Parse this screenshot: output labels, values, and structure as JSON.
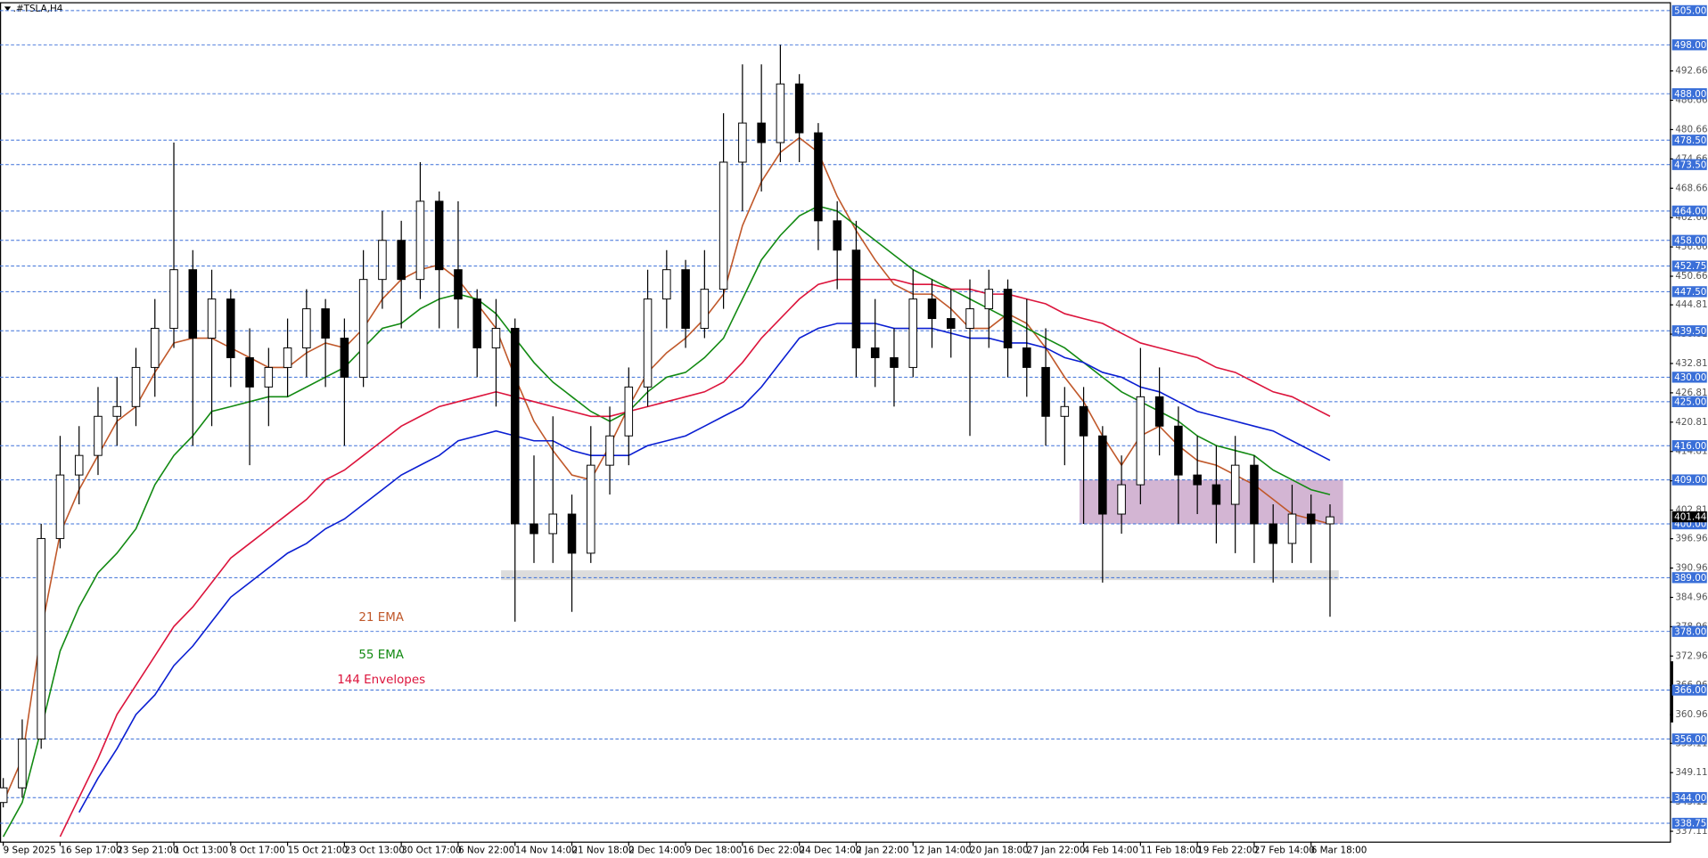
{
  "chart_data": {
    "type": "candlestick",
    "title": ".#TSLA,H4",
    "categories": [
      "9 Sep 2025",
      null,
      null,
      "16 Sep 17:00",
      null,
      null,
      "23 Sep 21:00",
      null,
      null,
      "1 Oct 13:00",
      null,
      null,
      "8 Oct 17:00",
      null,
      null,
      "15 Oct 21:00",
      null,
      null,
      "23 Oct 13:00",
      null,
      null,
      "30 Oct 17:00",
      null,
      null,
      "6 Nov 22:00",
      null,
      null,
      "14 Nov 14:00",
      null,
      null,
      "21 Nov 18:00",
      null,
      null,
      "2 Dec 14:00",
      null,
      null,
      "9 Dec 18:00",
      null,
      null,
      "16 Dec 22:00",
      null,
      null,
      "24 Dec 14:00",
      null,
      null,
      "2 Jan 22:00",
      null,
      null,
      "12 Jan 14:00",
      null,
      null,
      "20 Jan 18:00",
      null,
      null,
      "27 Jan 22:00",
      null,
      null,
      "4 Feb 14:00",
      null,
      null,
      "11 Feb 18:00",
      null,
      null,
      "19 Feb 22:00",
      null,
      null,
      "27 Feb 14:00",
      null,
      null,
      "6 Mar 18:00",
      null
    ],
    "candles": {
      "open": [
        343,
        346,
        356,
        397,
        410,
        414,
        422,
        424,
        432,
        440,
        452,
        438,
        446,
        434,
        428,
        432,
        436,
        444,
        438,
        430,
        450,
        458,
        450,
        466,
        452,
        446,
        436,
        440,
        400,
        398,
        402,
        394,
        412,
        418,
        428,
        446,
        452,
        440,
        448,
        474,
        482,
        478,
        490,
        480,
        462,
        456,
        436,
        434,
        432,
        446,
        442,
        440,
        444,
        448,
        436,
        432,
        422,
        424,
        418,
        402,
        408,
        426,
        420,
        410,
        408,
        404,
        412,
        400,
        396,
        402,
        400
      ],
      "high": [
        348,
        360,
        400,
        418,
        420,
        428,
        430,
        436,
        446,
        478,
        456,
        452,
        448,
        440,
        436,
        442,
        448,
        446,
        442,
        456,
        464,
        462,
        474,
        468,
        466,
        448,
        446,
        442,
        414,
        422,
        406,
        420,
        424,
        432,
        452,
        456,
        454,
        456,
        484,
        494,
        494,
        498,
        492,
        482,
        466,
        462,
        446,
        440,
        452,
        450,
        448,
        450,
        452,
        450,
        446,
        440,
        428,
        428,
        420,
        414,
        436,
        432,
        424,
        418,
        416,
        418,
        414,
        404,
        408,
        406,
        404
      ],
      "low": [
        342,
        344,
        354,
        395,
        404,
        410,
        416,
        420,
        426,
        436,
        416,
        420,
        428,
        412,
        420,
        426,
        430,
        428,
        416,
        428,
        444,
        440,
        446,
        440,
        440,
        430,
        424,
        380,
        392,
        392,
        382,
        392,
        406,
        412,
        424,
        440,
        436,
        438,
        444,
        464,
        468,
        474,
        474,
        456,
        448,
        430,
        428,
        424,
        430,
        436,
        434,
        418,
        436,
        430,
        426,
        416,
        412,
        400,
        388,
        398,
        404,
        414,
        400,
        402,
        396,
        394,
        392,
        388,
        392,
        392,
        381
      ],
      "close": [
        346,
        356,
        397,
        410,
        414,
        422,
        424,
        432,
        440,
        452,
        438,
        446,
        434,
        428,
        432,
        436,
        444,
        438,
        430,
        450,
        458,
        450,
        466,
        452,
        446,
        436,
        440,
        400,
        398,
        402,
        394,
        412,
        418,
        428,
        446,
        452,
        440,
        448,
        474,
        482,
        478,
        490,
        480,
        462,
        456,
        436,
        434,
        432,
        446,
        442,
        440,
        444,
        448,
        436,
        432,
        422,
        424,
        418,
        402,
        408,
        426,
        420,
        410,
        408,
        404,
        412,
        400,
        396,
        402,
        400,
        401.44
      ]
    },
    "bull_color": "#ffffff",
    "bear_color": "#000000",
    "series": [
      {
        "name": "21 EMA",
        "color": "#c0582a",
        "values": [
          343,
          352,
          378,
          398,
          407,
          414,
          421,
          424,
          431,
          437,
          438,
          438,
          436,
          434,
          432,
          432,
          435,
          437,
          436,
          440,
          446,
          450,
          452,
          453,
          450,
          445,
          440,
          430,
          421,
          415,
          410,
          409,
          416,
          424,
          431,
          435,
          438,
          442,
          447,
          461,
          470,
          476,
          479,
          476,
          467,
          460,
          454,
          449,
          447,
          447,
          444,
          440,
          440,
          443,
          441,
          436,
          430,
          425,
          418,
          412,
          418,
          420,
          416,
          413,
          412,
          410,
          408,
          405,
          402,
          401,
          400
        ]
      },
      {
        "name": "55 EMA",
        "color": "#138a13",
        "values": [
          336,
          343,
          358,
          374,
          383,
          390,
          394,
          399,
          408,
          414,
          418,
          423,
          424,
          425,
          426,
          426,
          428,
          430,
          432,
          436,
          440,
          441,
          444,
          446,
          447,
          446,
          443,
          438,
          433,
          429,
          426,
          423,
          421,
          423,
          427,
          430,
          431,
          434,
          438,
          446,
          454,
          459,
          463,
          465,
          464,
          461,
          458,
          455,
          452,
          450,
          448,
          446,
          444,
          442,
          440,
          438,
          436,
          433,
          430,
          427,
          425,
          423,
          421,
          418,
          416,
          415,
          414,
          411,
          409,
          407,
          406
        ]
      },
      {
        "name": "144 Envelopes",
        "color": "#dc143c",
        "values": [
          null,
          null,
          null,
          336,
          344,
          352,
          361,
          367,
          373,
          379,
          383,
          388,
          393,
          396,
          399,
          402,
          405,
          409,
          411,
          414,
          417,
          420,
          422,
          424,
          425,
          426,
          427,
          426,
          425,
          424,
          423,
          422,
          422,
          423,
          424,
          425,
          426,
          427,
          429,
          433,
          438,
          442,
          446,
          449,
          450,
          450,
          450,
          450,
          449,
          449,
          448,
          448,
          447,
          447,
          446,
          445,
          443,
          442,
          441,
          439,
          437,
          436,
          435,
          434,
          432,
          431,
          429,
          427,
          426,
          424,
          422
        ]
      },
      {
        "color": "#0a1ed2",
        "values": [
          null,
          null,
          null,
          null,
          341,
          348,
          354,
          361,
          365,
          371,
          375,
          380,
          385,
          388,
          391,
          394,
          396,
          399,
          401,
          404,
          407,
          410,
          412,
          414,
          417,
          418,
          419,
          418,
          417,
          417,
          415,
          414,
          414,
          414,
          416,
          417,
          418,
          420,
          422,
          424,
          428,
          433,
          438,
          440,
          441,
          441,
          441,
          440,
          440,
          440,
          439,
          438,
          438,
          437,
          437,
          436,
          434,
          433,
          431,
          430,
          428,
          427,
          425,
          423,
          422,
          421,
          420,
          419,
          417,
          415,
          413
        ]
      }
    ],
    "levels": [
      {
        "value": 505,
        "label": "505.00"
      },
      {
        "value": 498,
        "label": "498.00"
      },
      {
        "value": 488,
        "label": "488.00"
      },
      {
        "value": 478.5,
        "label": "478.50"
      },
      {
        "value": 473.5,
        "label": "473.50"
      },
      {
        "value": 464,
        "label": "464.00"
      },
      {
        "value": 458,
        "label": "458.00"
      },
      452.75,
      {
        "value": 447.5,
        "label": "447.50"
      },
      {
        "value": 439.5,
        "label": "439.50"
      },
      {
        "value": 430,
        "label": "430.00"
      },
      {
        "value": 425,
        "label": "425.00"
      },
      {
        "value": 416,
        "label": "416.00"
      },
      {
        "value": 409,
        "label": "409.00"
      },
      {
        "value": 400,
        "label": "400.00"
      },
      {
        "value": 389,
        "label": "389.00"
      },
      {
        "value": 378,
        "label": "378.00"
      },
      {
        "value": 366,
        "label": "366.00"
      },
      {
        "value": 356,
        "label": "356.00"
      },
      {
        "value": 344,
        "label": "344.00"
      },
      338.75
    ],
    "level_color": "#3a6fd8",
    "zones": [
      {
        "ylim": [
          400,
          409
        ],
        "color": "#c8a2c8"
      },
      {
        "ylim": [
          388.5,
          390.5
        ],
        "color": "#d3d3d3"
      }
    ],
    "current_price": 401.44,
    "ylim": [
      335,
      506.5
    ],
    "yticks": [
      492.66,
      486.66,
      480.66,
      474.66,
      468.66,
      462.66,
      456.66,
      450.66,
      444.81,
      438.81,
      432.81,
      426.81,
      420.81,
      414.81,
      408.81,
      402.81,
      396.96,
      390.96,
      384.96,
      378.96,
      372.96,
      366.96,
      360.96,
      355.11,
      349.11,
      343.11,
      337.11
    ]
  }
}
